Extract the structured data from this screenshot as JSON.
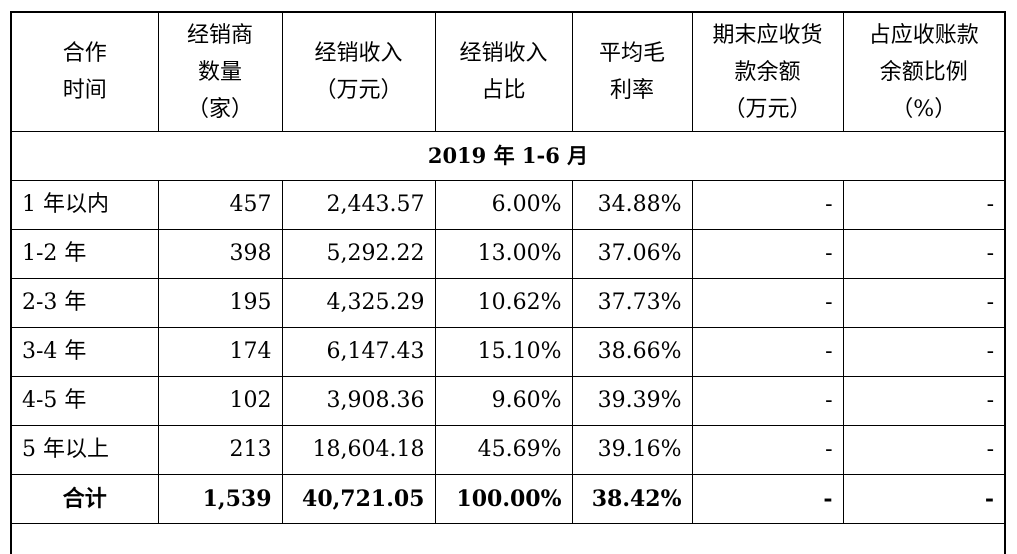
{
  "table": {
    "headers": [
      [
        "合作",
        "时间"
      ],
      [
        "经销商",
        "数量",
        "（家）"
      ],
      [
        "经销收入",
        "（万元）"
      ],
      [
        "经销收入",
        "占比"
      ],
      [
        "平均毛",
        "利率"
      ],
      [
        "期末应收货",
        "款余额",
        "（万元）"
      ],
      [
        "占应收账款",
        "余额比例",
        "（%）"
      ]
    ],
    "period_label": "2019 年 1-6 月",
    "rows": [
      [
        "1 年以内",
        "457",
        "2,443.57",
        "6.00%",
        "34.88%",
        "-",
        "-"
      ],
      [
        "1-2 年",
        "398",
        "5,292.22",
        "13.00%",
        "37.06%",
        "-",
        "-"
      ],
      [
        "2-3 年",
        "195",
        "4,325.29",
        "10.62%",
        "37.73%",
        "-",
        "-"
      ],
      [
        "3-4 年",
        "174",
        "6,147.43",
        "15.10%",
        "38.66%",
        "-",
        "-"
      ],
      [
        "4-5 年",
        "102",
        "3,908.36",
        "9.60%",
        "39.39%",
        "-",
        "-"
      ],
      [
        "5 年以上",
        "213",
        "18,604.18",
        "45.69%",
        "39.16%",
        "-",
        "-"
      ]
    ],
    "total": [
      "合计",
      "1,539",
      "40,721.05",
      "100.00%",
      "38.42%",
      "-",
      "-"
    ]
  }
}
